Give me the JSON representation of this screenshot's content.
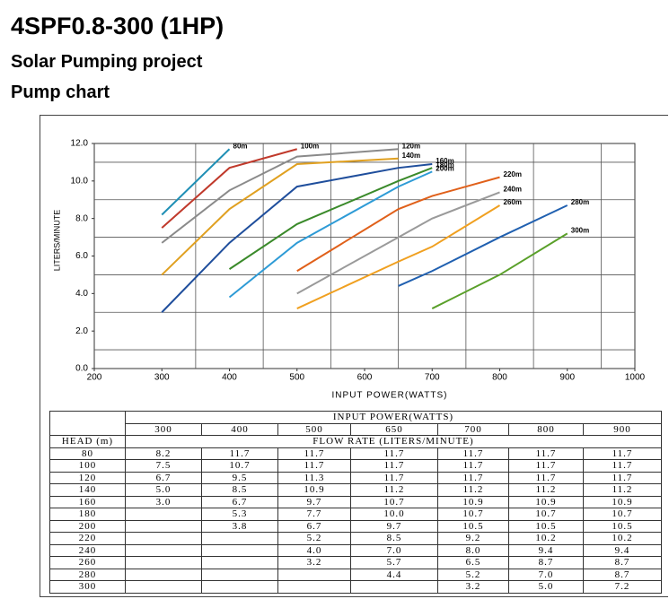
{
  "header": {
    "title": "4SPF0.8-300 (1HP)",
    "subtitle": "Solar Pumping project",
    "section": "Pump chart"
  },
  "chart_data": {
    "type": "line",
    "x_label": "INPUT POWER(WATTS)",
    "y_label": "LITERS/MINUTE",
    "x": [
      300,
      400,
      500,
      650,
      700,
      800,
      900
    ],
    "xlim": [
      200,
      1000
    ],
    "xticks": [
      200,
      300,
      400,
      500,
      600,
      700,
      800,
      900,
      1000
    ],
    "ylim": [
      0,
      12
    ],
    "yticks": [
      {
        "value": 0,
        "label": "0.0"
      },
      {
        "value": 2,
        "label": "2.0"
      },
      {
        "value": 4,
        "label": "4.0"
      },
      {
        "value": 6,
        "label": "6.0"
      },
      {
        "value": 8,
        "label": "8.0"
      },
      {
        "value": 10,
        "label": "10.0"
      },
      {
        "value": 12,
        "label": "12.0"
      }
    ],
    "xgrid": [
      350,
      450,
      550,
      650,
      750,
      850,
      950
    ],
    "ygrid": [
      1,
      3,
      5,
      7,
      9,
      11
    ],
    "series": [
      {
        "name": "80m",
        "color": "#1f8fb5",
        "values": [
          8.2,
          11.7,
          null,
          null,
          null,
          null,
          null
        ]
      },
      {
        "name": "100m",
        "color": "#c0392b",
        "values": [
          7.5,
          10.7,
          11.7,
          null,
          null,
          null,
          null
        ]
      },
      {
        "name": "120m",
        "color": "#8a8a8a",
        "values": [
          6.7,
          9.5,
          11.3,
          11.7,
          null,
          null,
          null
        ]
      },
      {
        "name": "140m",
        "color": "#e0a020",
        "values": [
          5.0,
          8.5,
          10.9,
          11.2,
          null,
          null,
          null
        ]
      },
      {
        "name": "160m",
        "color": "#1f4e9c",
        "values": [
          3.0,
          6.7,
          9.7,
          10.7,
          10.9,
          null,
          null
        ]
      },
      {
        "name": "180m",
        "color": "#3a8a2a",
        "values": [
          null,
          5.3,
          7.7,
          10.0,
          10.7,
          null,
          null
        ]
      },
      {
        "name": "200m",
        "color": "#2e9bd6",
        "values": [
          null,
          3.8,
          6.7,
          9.7,
          10.5,
          null,
          null
        ]
      },
      {
        "name": "220m",
        "color": "#e0601a",
        "values": [
          null,
          null,
          5.2,
          8.5,
          9.2,
          10.2,
          null
        ]
      },
      {
        "name": "240m",
        "color": "#9a9a9a",
        "values": [
          null,
          null,
          4.0,
          7.0,
          8.0,
          9.4,
          null
        ]
      },
      {
        "name": "260m",
        "color": "#f0a020",
        "values": [
          null,
          null,
          3.2,
          5.7,
          6.5,
          8.7,
          null
        ]
      },
      {
        "name": "280m",
        "color": "#2060b0",
        "values": [
          null,
          null,
          null,
          4.4,
          5.2,
          7.0,
          8.7
        ]
      },
      {
        "name": "300m",
        "color": "#5aa02a",
        "values": [
          null,
          null,
          null,
          null,
          3.2,
          5.0,
          7.2
        ]
      }
    ]
  },
  "table": {
    "header": "INPUT POWER(WATTS)",
    "columns": [
      "300",
      "400",
      "500",
      "650",
      "700",
      "800",
      "900"
    ],
    "row_header": "HEAD (m)",
    "subheader": "FLOW RATE (LITERS/MINUTE)",
    "rows": [
      [
        "80",
        "8.2",
        "11.7",
        "11.7",
        "11.7",
        "11.7",
        "11.7",
        "11.7"
      ],
      [
        "100",
        "7.5",
        "10.7",
        "11.7",
        "11.7",
        "11.7",
        "11.7",
        "11.7"
      ],
      [
        "120",
        "6.7",
        "9.5",
        "11.3",
        "11.7",
        "11.7",
        "11.7",
        "11.7"
      ],
      [
        "140",
        "5.0",
        "8.5",
        "10.9",
        "11.2",
        "11.2",
        "11.2",
        "11.2"
      ],
      [
        "160",
        "3.0",
        "6.7",
        "9.7",
        "10.7",
        "10.9",
        "10.9",
        "10.9"
      ],
      [
        "180",
        "",
        "5.3",
        "7.7",
        "10.0",
        "10.7",
        "10.7",
        "10.7"
      ],
      [
        "200",
        "",
        "3.8",
        "6.7",
        "9.7",
        "10.5",
        "10.5",
        "10.5"
      ],
      [
        "220",
        "",
        "",
        "5.2",
        "8.5",
        "9.2",
        "10.2",
        "10.2"
      ],
      [
        "240",
        "",
        "",
        "4.0",
        "7.0",
        "8.0",
        "9.4",
        "9.4"
      ],
      [
        "260",
        "",
        "",
        "3.2",
        "5.7",
        "6.5",
        "8.7",
        "8.7"
      ],
      [
        "280",
        "",
        "",
        "",
        "4.4",
        "5.2",
        "7.0",
        "8.7"
      ],
      [
        "300",
        "",
        "",
        "",
        "",
        "3.2",
        "5.0",
        "7.2"
      ]
    ]
  }
}
